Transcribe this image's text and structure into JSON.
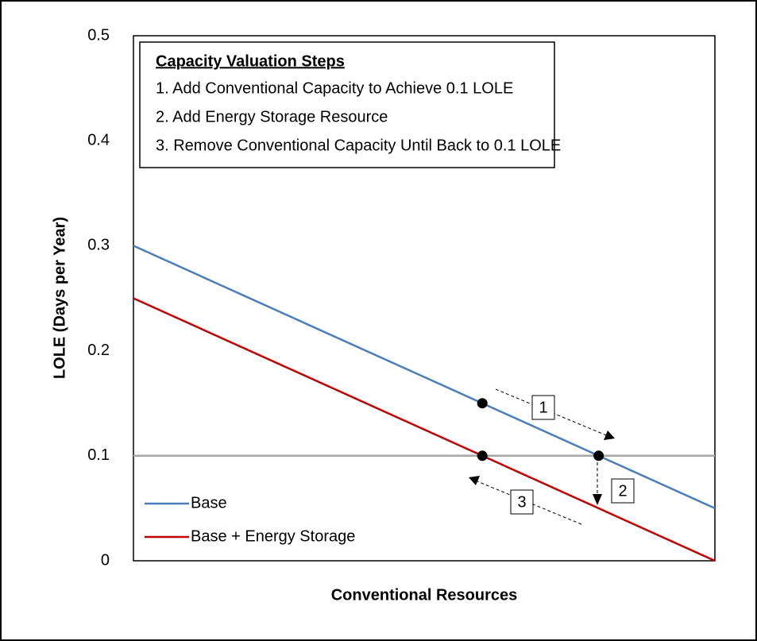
{
  "chart_data": {
    "type": "line",
    "xlabel": "Conventional Resources",
    "ylabel": "LOLE (Days per Year)",
    "xlim": [
      0,
      100
    ],
    "ylim": [
      0,
      0.5
    ],
    "yticks": [
      0,
      0.1,
      0.2,
      0.3,
      0.4,
      0.5
    ],
    "series": [
      {
        "name": "Base",
        "color": "#4a7ebb",
        "x": [
          0,
          100
        ],
        "values": [
          0.3,
          0.05
        ]
      },
      {
        "name": "Base + Energy Storage",
        "color": "#c00000",
        "x": [
          0,
          100
        ],
        "values": [
          0.25,
          0
        ]
      }
    ],
    "reference_line": {
      "value": 0.1,
      "color": "#a6a6a6"
    },
    "markers": {
      "color": "#000000",
      "x": [
        60,
        60,
        80
      ],
      "values": [
        0.15,
        0.1,
        0.1
      ]
    },
    "legend": "lower left",
    "text_box": {
      "title": "Capacity Valuation Steps",
      "lines": [
        "1. Add Conventional Capacity to Achieve 0.1 LOLE",
        "2. Add Energy Storage Resource",
        "3. Remove Conventional Capacity Until Back to 0.1 LOLE"
      ]
    },
    "annotations": [
      "1",
      "2",
      "3"
    ]
  }
}
